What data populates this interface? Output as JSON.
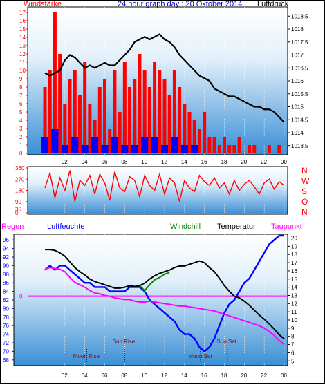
{
  "chart_data": [
    {
      "type": "line",
      "panel": "wind-pressure",
      "title": "24 hour graph day : 20 Oktober 2014",
      "left_label": "Windstärke",
      "right_label": "Luftdruck",
      "x_ticks": [
        "02",
        "04",
        "06",
        "08",
        "10",
        "12",
        "14",
        "16",
        "18",
        "20",
        "22",
        "00"
      ],
      "y_left_ticks": [
        "0",
        "1",
        "2",
        "3",
        "4",
        "5",
        "6",
        "7",
        "8",
        "9",
        "10",
        "11",
        "12",
        "13",
        "14",
        "15",
        "16",
        "17"
      ],
      "y_left_range": [
        0,
        17.5
      ],
      "y_right_ticks": [
        "1013.5",
        "1014",
        "1014.5",
        "1015",
        "1015.5",
        "1016",
        "1016.5",
        "1017",
        "1017.5",
        "1018",
        "1018.5"
      ],
      "y_right_range": [
        1013.2,
        1018.8
      ],
      "series": [
        {
          "name": "Luftdruck",
          "color": "#000000",
          "x": [
            0,
            0.5,
            1,
            1.5,
            2,
            2.5,
            3,
            3.5,
            4,
            4.5,
            5,
            5.5,
            6,
            6.5,
            7,
            7.5,
            8,
            8.5,
            9,
            9.5,
            10,
            10.5,
            11,
            11.5,
            12,
            12.5,
            13,
            13.5,
            14,
            14.5,
            15,
            15.5,
            16,
            16.5,
            17,
            17.5,
            18,
            18.5,
            19,
            19.5,
            20,
            20.5,
            21,
            21.5,
            22,
            22.5,
            23,
            23.5,
            24
          ],
          "y": [
            1016.3,
            1016.2,
            1016.3,
            1016.4,
            1016.8,
            1017.0,
            1016.9,
            1016.7,
            1016.5,
            1016.6,
            1016.5,
            1016.6,
            1016.7,
            1016.6,
            1016.6,
            1016.8,
            1017.0,
            1017.2,
            1017.5,
            1017.6,
            1017.7,
            1017.6,
            1017.7,
            1017.8,
            1017.6,
            1017.5,
            1017.3,
            1017.0,
            1016.8,
            1016.6,
            1016.4,
            1016.2,
            1016.1,
            1016.0,
            1015.7,
            1015.6,
            1015.5,
            1015.4,
            1015.4,
            1015.3,
            1015.2,
            1015.1,
            1015.0,
            1015.0,
            1014.9,
            1014.9,
            1014.8,
            1014.6,
            1014.4
          ]
        },
        {
          "name": "Windstärke",
          "color": "#ff0000",
          "x": [
            0,
            0.5,
            1,
            1.5,
            2,
            2.5,
            3,
            3.5,
            4,
            4.5,
            5,
            5.5,
            6,
            6.5,
            7,
            7.5,
            8,
            8.5,
            9,
            9.5,
            10,
            10.5,
            11,
            11.5,
            12,
            12.5,
            13,
            13.5,
            14,
            14.5,
            15,
            15.5,
            16,
            16.5,
            17,
            17.5,
            18,
            18.5,
            19,
            19.5,
            20,
            20.5,
            21,
            21.5,
            22,
            22.5,
            23,
            23.5,
            24
          ],
          "y": [
            8,
            10,
            17,
            12,
            6,
            9,
            10,
            7,
            11,
            6,
            4,
            8,
            9,
            3,
            10,
            5,
            11,
            8,
            9,
            12,
            10,
            8,
            11,
            10,
            9,
            7,
            10,
            8,
            6,
            5,
            4,
            3,
            5,
            2,
            2,
            1,
            2,
            1,
            1,
            2,
            0,
            1,
            1,
            0,
            0,
            1,
            0,
            1,
            0
          ]
        },
        {
          "name": "Wind-min",
          "color": "#0000ff",
          "x": [
            0,
            1,
            2,
            3,
            4,
            5,
            6,
            7,
            8,
            9,
            10,
            11,
            12,
            13,
            14,
            15,
            16,
            17,
            18,
            19,
            20,
            21,
            22,
            23,
            24
          ],
          "y": [
            2,
            3,
            1,
            2,
            1,
            2,
            1,
            2,
            1,
            1,
            2,
            2,
            1,
            2,
            1,
            1,
            0,
            0,
            0,
            0,
            0,
            0,
            0,
            0,
            0
          ]
        }
      ]
    },
    {
      "type": "line",
      "panel": "wind-direction",
      "right_labels": [
        "N",
        "W",
        "S",
        "O",
        "N"
      ],
      "y_left_ticks": [
        "0",
        "30",
        "90",
        "180",
        "270",
        "360"
      ],
      "y_range": [
        0,
        360
      ],
      "series": [
        {
          "name": "Windrichtung",
          "color": "#ff0000",
          "x": [
            0,
            0.5,
            1,
            1.5,
            2,
            2.5,
            3,
            3.5,
            4,
            4.5,
            5,
            5.5,
            6,
            6.5,
            7,
            7.5,
            8,
            8.5,
            9,
            9.5,
            10,
            10.5,
            11,
            11.5,
            12,
            12.5,
            13,
            13.5,
            14,
            14.5,
            15,
            15.5,
            16,
            16.5,
            17,
            17.5,
            18,
            18.5,
            19,
            19.5,
            20,
            20.5,
            21,
            21.5,
            22,
            22.5,
            23,
            23.5,
            24
          ],
          "y": [
            200,
            320,
            120,
            280,
            180,
            340,
            90,
            260,
            220,
            300,
            150,
            310,
            240,
            100,
            330,
            200,
            170,
            290,
            260,
            130,
            300,
            220,
            180,
            310,
            150,
            280,
            240,
            90,
            260,
            200,
            170,
            300,
            250,
            220,
            280,
            200,
            240,
            150,
            260,
            180,
            230,
            260,
            210,
            150,
            240,
            270,
            190,
            250,
            220
          ]
        }
      ]
    },
    {
      "type": "line",
      "panel": "temperature-humidity",
      "header_labels": [
        "Regen",
        "Luftfeuchte",
        "Windchill",
        "Temperatur",
        "Taupunkt"
      ],
      "y_left_ticks": [
        "68",
        "70",
        "72",
        "74",
        "76",
        "78",
        "80",
        "82",
        "84",
        "86",
        "88",
        "90",
        "92",
        "94",
        "96"
      ],
      "y_left_range": [
        67,
        97
      ],
      "y_right_ticks": [
        "5",
        "6",
        "7",
        "8",
        "9",
        "10",
        "11",
        "12",
        "13",
        "14",
        "15",
        "16",
        "17",
        "18",
        "19",
        "20"
      ],
      "y_right_range": [
        4.6,
        20.3
      ],
      "rain_value_label": "0",
      "x_ticks": [
        "02",
        "04",
        "06",
        "08",
        "10",
        "12",
        "14",
        "16",
        "18",
        "20",
        "22",
        "00"
      ],
      "events": [
        {
          "label": "Moon Rise",
          "x": 4.2
        },
        {
          "label": "Sun Rise",
          "x": 8.0
        },
        {
          "label": "Sun Set",
          "x": 18.3
        },
        {
          "label": "Moon Set",
          "x": 15.6
        }
      ],
      "series": [
        {
          "name": "Luftfeuchte",
          "color": "#0000ff",
          "x": [
            0,
            0.5,
            1,
            1.5,
            2,
            2.5,
            3,
            3.5,
            4,
            4.5,
            5,
            5.5,
            6,
            6.5,
            7,
            7.5,
            8,
            8.5,
            9,
            9.5,
            10,
            10.5,
            11,
            11.5,
            12,
            12.5,
            13,
            13.5,
            14,
            14.5,
            15,
            15.5,
            16,
            16.5,
            17,
            17.5,
            18,
            18.5,
            19,
            19.5,
            20,
            20.5,
            21,
            21.5,
            22,
            22.5,
            23,
            23.5,
            24
          ],
          "y": [
            89,
            90,
            89,
            90,
            90,
            89,
            88,
            87,
            86,
            86,
            85,
            85,
            85,
            84,
            84,
            84,
            84,
            85,
            85,
            85,
            84,
            82,
            81,
            80,
            79,
            78,
            77,
            75,
            74,
            74,
            73,
            71,
            70,
            71,
            73,
            76,
            79,
            81,
            82,
            84,
            86,
            87,
            89,
            91,
            93,
            95,
            96,
            97,
            97
          ]
        },
        {
          "name": "Temperatur",
          "color": "#000000",
          "x": [
            0,
            0.5,
            1,
            1.5,
            2,
            2.5,
            3,
            3.5,
            4,
            4.5,
            5,
            5.5,
            6,
            6.5,
            7,
            7.5,
            8,
            8.5,
            9,
            9.5,
            10,
            10.5,
            11,
            11.5,
            12,
            12.5,
            13,
            13.5,
            14,
            14.5,
            15,
            15.5,
            16,
            16.5,
            17,
            17.5,
            18,
            18.5,
            19,
            19.5,
            20,
            20.5,
            21,
            21.5,
            22,
            22.5,
            23,
            23.5,
            24
          ],
          "y": [
            18.6,
            18.6,
            18.5,
            18.2,
            17.8,
            17.1,
            16.4,
            15.9,
            15.5,
            15.0,
            14.7,
            14.5,
            14.3,
            14.1,
            13.9,
            13.9,
            14.0,
            14.2,
            14.1,
            14.2,
            14.5,
            15.0,
            15.4,
            15.7,
            15.9,
            16.1,
            16.4,
            16.6,
            16.6,
            16.8,
            17.0,
            17.2,
            17.0,
            16.4,
            15.9,
            15.1,
            14.2,
            13.5,
            12.9,
            12.7,
            12.3,
            11.8,
            11.2,
            10.6,
            10.1,
            9.5,
            8.9,
            8.2,
            7.7
          ]
        },
        {
          "name": "Windchill",
          "color": "#008800",
          "x": [
            9.5,
            10,
            10.5,
            11,
            11.5,
            12,
            12.5
          ],
          "y": [
            14.2,
            13.6,
            14.3,
            14.9,
            15.2,
            15.6,
            15.8
          ]
        },
        {
          "name": "Taupunkt",
          "color": "#ff00ff",
          "x": [
            0,
            0.5,
            1,
            1.5,
            2,
            2.5,
            3,
            3.5,
            4,
            4.5,
            5,
            5.5,
            6,
            6.5,
            7,
            7.5,
            8,
            8.5,
            9,
            9.5,
            10,
            10.5,
            11,
            11.5,
            12,
            12.5,
            13,
            13.5,
            14,
            14.5,
            15,
            15.5,
            16,
            16.5,
            17,
            17.5,
            18,
            18.5,
            19,
            19.5,
            20,
            20.5,
            21,
            21.5,
            22,
            22.5,
            23,
            23.5,
            24
          ],
          "y": [
            16.2,
            16.4,
            16.3,
            16.2,
            15.9,
            15.2,
            14.6,
            14.3,
            14.0,
            13.6,
            13.3,
            13.2,
            13.0,
            12.9,
            12.7,
            12.6,
            12.5,
            12.5,
            12.3,
            12.2,
            12.2,
            12.3,
            12.2,
            12.1,
            12.0,
            11.9,
            11.8,
            11.7,
            11.7,
            11.6,
            11.5,
            11.4,
            11.3,
            11.2,
            11.1,
            10.9,
            10.7,
            10.5,
            10.3,
            10.1,
            9.9,
            9.7,
            9.5,
            9.3,
            9.0,
            8.6,
            8.1,
            7.5,
            7.0
          ]
        }
      ],
      "rain_series": {
        "name": "Regen",
        "color": "#ff00ff",
        "value": 0
      }
    }
  ]
}
